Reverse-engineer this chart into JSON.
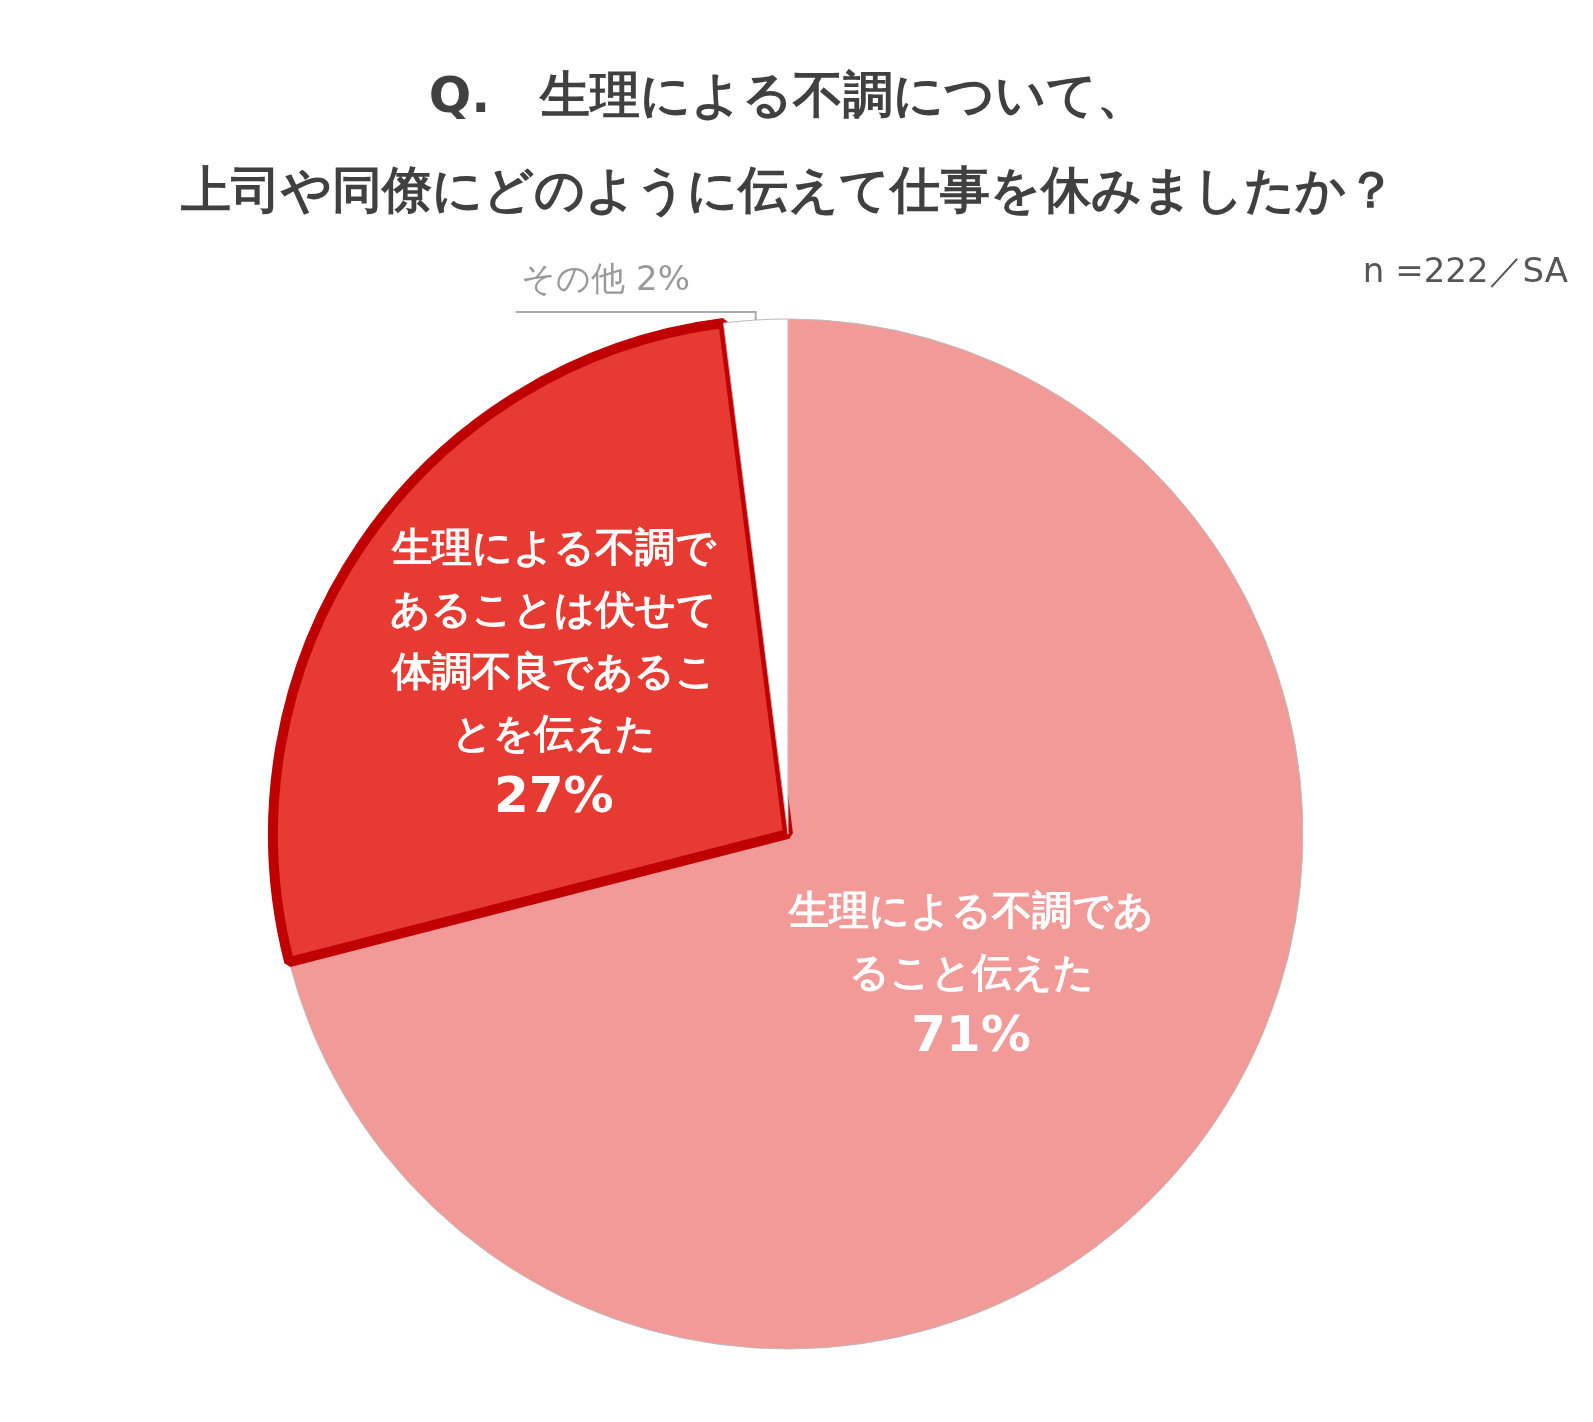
{
  "chart_data": {
    "type": "pie",
    "title": "Q.　生理による不調について、上司や同僚にどのように伝えて仕事を休みましたか？",
    "annotations": [
      "n =222／SA"
    ],
    "categories": [
      "生理による不調であること伝えた",
      "生理による不調であることは伏せて体調不良であることを伝えた",
      "その他"
    ],
    "values": [
      71,
      27,
      2
    ],
    "colors": [
      "#f19a97",
      "#e63a32",
      "#ffffff"
    ],
    "value_labels": [
      "71%",
      "27%",
      "2%"
    ],
    "legend": false
  }
}
